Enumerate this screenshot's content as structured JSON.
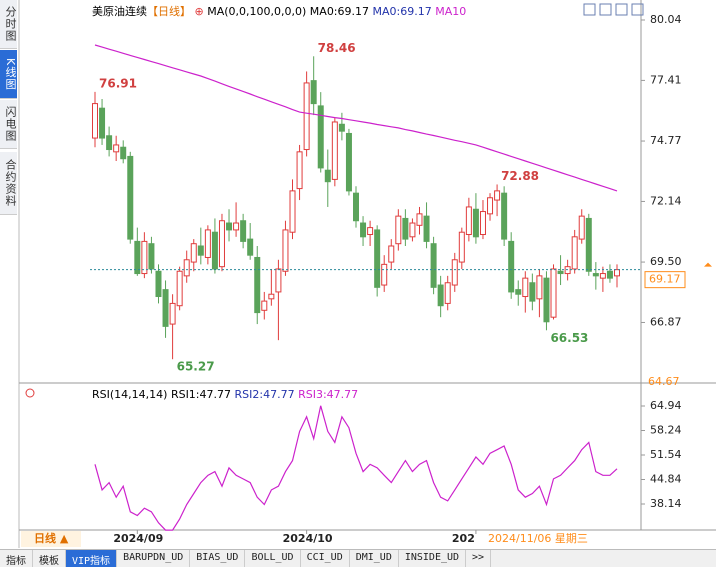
{
  "chart_data": {
    "type": "candlestick",
    "title": "美原油连续",
    "period": "【日线】",
    "ma_label": "MA(0,0,100,0,0,0)",
    "ma_value_1": "MA0:69.17",
    "ma_value_2": "MA0:69.17",
    "ma_name": "MA10",
    "categories": [
      null,
      null,
      null,
      null,
      null,
      null,
      "2024/09",
      null,
      null,
      null,
      null,
      null,
      null,
      null,
      null,
      null,
      null,
      null,
      null,
      null,
      null,
      null,
      null,
      null,
      null,
      null,
      null,
      null,
      null,
      null,
      "2024/10",
      null,
      null,
      null,
      null,
      null,
      null,
      null,
      null,
      null,
      null,
      null,
      null,
      null,
      null,
      null,
      null,
      null,
      null,
      null,
      null,
      null,
      null,
      null,
      "202",
      null,
      null,
      null,
      null,
      null,
      null,
      null,
      null,
      null,
      null,
      null,
      null,
      null,
      null,
      null,
      null,
      null,
      null,
      null,
      null
    ],
    "open": [
      74.9,
      76.2,
      75.0,
      74.3,
      74.5,
      74.1,
      70.4,
      69.0,
      70.3,
      69.1,
      68.3,
      66.8,
      67.6,
      68.9,
      69.5,
      70.2,
      69.7,
      70.8,
      69.3,
      71.2,
      70.9,
      71.3,
      70.5,
      69.7,
      67.4,
      67.9,
      68.2,
      69.1,
      70.8,
      72.7,
      74.4,
      77.4,
      76.3,
      73.5,
      73.1,
      75.5,
      75.1,
      72.5,
      71.2,
      70.7,
      70.9,
      68.5,
      69.5,
      70.3,
      71.4,
      70.6,
      71.1,
      71.5,
      70.3,
      68.5,
      67.7,
      68.5,
      69.5,
      70.7,
      71.8,
      70.7,
      71.6,
      72.2,
      72.5,
      70.4,
      68.3,
      68.0,
      68.6,
      67.9,
      68.8,
      67.1,
      69.1,
      69.0,
      69.2,
      70.5,
      71.4,
      69.0,
      68.8,
      69.1,
      68.9
    ],
    "high": [
      76.91,
      76.6,
      75.4,
      75.0,
      74.8,
      74.3,
      71.0,
      70.8,
      70.6,
      69.4,
      68.7,
      68.1,
      69.3,
      70.0,
      70.5,
      71.0,
      71.1,
      71.4,
      71.6,
      71.8,
      72.1,
      71.6,
      71.2,
      70.2,
      68.2,
      69.2,
      69.6,
      71.3,
      73.1,
      74.6,
      77.8,
      78.46,
      76.9,
      74.4,
      75.8,
      76.0,
      75.3,
      72.8,
      71.5,
      71.3,
      71.1,
      69.8,
      70.5,
      71.8,
      71.8,
      71.4,
      71.9,
      72.1,
      70.6,
      68.9,
      68.9,
      69.9,
      71.0,
      72.3,
      72.5,
      72.2,
      72.5,
      72.88,
      72.8,
      70.8,
      68.7,
      69.1,
      69.0,
      69.2,
      69.1,
      69.4,
      69.8,
      69.6,
      70.9,
      71.8,
      71.6,
      69.5,
      69.3,
      69.4,
      69.4
    ],
    "low": [
      74.5,
      74.6,
      74.1,
      73.9,
      73.8,
      70.3,
      68.9,
      68.8,
      69.0,
      67.7,
      66.2,
      65.27,
      67.4,
      68.6,
      69.1,
      69.4,
      69.4,
      69.0,
      69.1,
      70.4,
      70.6,
      70.1,
      69.6,
      66.8,
      67.0,
      67.6,
      66.1,
      68.9,
      70.5,
      72.2,
      74.1,
      75.9,
      73.4,
      71.9,
      72.8,
      74.8,
      72.4,
      71.0,
      70.2,
      70.2,
      68.0,
      68.2,
      69.2,
      70.0,
      70.2,
      70.4,
      70.7,
      70.1,
      68.1,
      67.1,
      67.4,
      68.2,
      69.2,
      70.4,
      70.3,
      70.5,
      71.3,
      71.5,
      70.2,
      67.9,
      67.6,
      67.3,
      67.4,
      67.1,
      66.53,
      67.0,
      68.5,
      68.7,
      69.0,
      70.3,
      68.9,
      68.3,
      68.2,
      68.6,
      68.4
    ],
    "close": [
      76.4,
      74.9,
      74.4,
      74.6,
      74.0,
      70.5,
      69.0,
      70.4,
      69.2,
      68.0,
      66.7,
      67.7,
      69.1,
      69.6,
      70.3,
      69.8,
      70.9,
      69.2,
      71.3,
      70.9,
      71.2,
      70.4,
      69.8,
      67.3,
      67.8,
      68.1,
      69.2,
      70.9,
      72.6,
      74.3,
      77.3,
      76.4,
      73.6,
      73.0,
      75.6,
      75.2,
      72.6,
      71.3,
      70.6,
      71.0,
      68.4,
      69.4,
      70.2,
      71.5,
      70.5,
      71.2,
      71.6,
      70.4,
      68.4,
      67.6,
      68.6,
      69.6,
      70.8,
      71.9,
      70.6,
      71.7,
      72.3,
      72.6,
      70.5,
      68.2,
      68.1,
      68.8,
      67.8,
      68.9,
      66.9,
      69.2,
      69.0,
      69.3,
      70.6,
      71.5,
      69.1,
      68.9,
      69.0,
      68.8,
      69.17
    ],
    "ma": [
      78.95,
      78.86,
      78.77,
      78.68,
      78.59,
      78.5,
      78.41,
      78.32,
      78.23,
      78.14,
      78.05,
      77.96,
      77.87,
      77.78,
      77.69,
      77.6,
      77.49,
      77.38,
      77.26,
      77.15,
      77.04,
      76.93,
      76.82,
      76.7,
      76.59,
      76.48,
      76.37,
      76.26,
      76.14,
      76.03,
      75.98,
      75.94,
      75.89,
      75.84,
      75.79,
      75.75,
      75.7,
      75.65,
      75.6,
      75.55,
      75.49,
      75.44,
      75.39,
      75.34,
      75.27,
      75.21,
      75.14,
      75.07,
      75.01,
      74.94,
      74.87,
      74.8,
      74.74,
      74.67,
      74.6,
      74.5,
      74.4,
      74.3,
      74.2,
      74.1,
      74.0,
      73.9,
      73.8,
      73.7,
      73.6,
      73.5,
      73.4,
      73.3,
      73.2,
      73.1,
      73.0,
      72.9,
      72.8,
      72.7,
      72.6
    ],
    "ma_color": "#cc22cc",
    "up_color": "#e03c3c",
    "down_color": "#5aa35a",
    "last_color": "#ff8c1a",
    "ylim": [
      64.67,
      80.04
    ],
    "yticks": [
      80.04,
      77.41,
      74.77,
      72.14,
      {
        "value": 69.5,
        "label": "69.50"
      },
      66.87
    ],
    "grid": false,
    "rsi": {
      "label": "RSI(14,14,14)",
      "v1": "RSI1:47.77",
      "v2": "RSI2:47.77",
      "v3": "RSI3:47.77",
      "color": "#cc22cc",
      "values": [
        49,
        42,
        44,
        40,
        43,
        36,
        35,
        37,
        36,
        33,
        31,
        31,
        34,
        38,
        41,
        44,
        46,
        47,
        43,
        48,
        46,
        45,
        44,
        40,
        38,
        42,
        43,
        47,
        50,
        58,
        62,
        56,
        65,
        58,
        55,
        62,
        59,
        52,
        47,
        49,
        48,
        46,
        44,
        47,
        50,
        47,
        49,
        50,
        44,
        40,
        39,
        42,
        45,
        48,
        51,
        49,
        52,
        53,
        54,
        49,
        42,
        40,
        41,
        43,
        38,
        45,
        46,
        48,
        50,
        53,
        55,
        47,
        46,
        46,
        47.77
      ],
      "ylim": [
        31.03,
        67.95
      ],
      "yticks": [
        64.94,
        58.24,
        51.54,
        44.84,
        38.14
      ]
    },
    "period_button": "日线 ▲",
    "cursor_label": "2024/11/06 星期三"
  },
  "sidebar": [
    "分时图",
    "K线图",
    "闪电图",
    "合约资料"
  ],
  "tabs": [
    "指标",
    "模板",
    "VIP指标",
    "BARUPDN_UD",
    "BIAS_UD",
    "BOLL_UD",
    "CCI_UD",
    "DMI_UD",
    "INSIDE_UD",
    ">>"
  ]
}
